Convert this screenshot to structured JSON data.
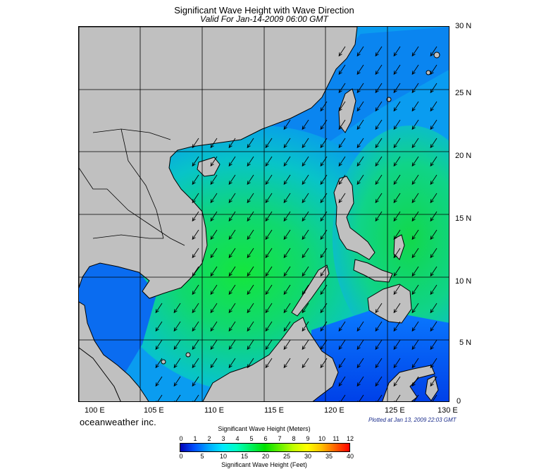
{
  "title": "Significant Wave Height with Wave Direction",
  "subtitle": "Valid For Jan-14-2009 06:00 GMT",
  "brand": "oceanweather inc.",
  "plotted": "Plotted at Jan 13, 2009 22:03 GMT",
  "lat_labels": [
    "30 N",
    "25 N",
    "20 N",
    "15 N",
    "10 N",
    "5 N",
    "0"
  ],
  "lon_labels": [
    "100 E",
    "105 E",
    "110 E",
    "115 E",
    "120 E",
    "125 E",
    "130 E"
  ],
  "colorbar": {
    "title_meters": "Significant Wave Height (Meters)",
    "title_feet": "Significant Wave Height (Feet)",
    "meter_ticks": [
      "0",
      "1",
      "2",
      "3",
      "4",
      "5",
      "6",
      "7",
      "8",
      "9",
      "10",
      "11",
      "12"
    ],
    "feet_ticks": [
      "0",
      "5",
      "10",
      "15",
      "20",
      "25",
      "30",
      "35",
      "40"
    ],
    "colors": [
      "#0000b4",
      "#0050ff",
      "#00a8ff",
      "#00e8ff",
      "#00ffc0",
      "#00f060",
      "#00e000",
      "#60f000",
      "#c0ff00",
      "#ffff00",
      "#ffc000",
      "#ff6000",
      "#ff0000"
    ]
  },
  "map": {
    "extent": {
      "lon_min": 100,
      "lon_max": 130,
      "lat_min": 0,
      "lat_max": 30
    },
    "land_color": "#c0c0c0",
    "wave_direction": "from northeast"
  }
}
